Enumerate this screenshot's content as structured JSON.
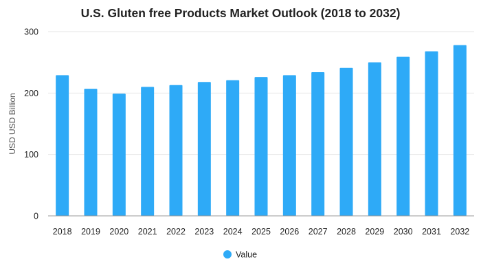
{
  "chart_data": {
    "type": "bar",
    "title": "U.S. Gluten free Products Market Outlook (2018 to 2032)",
    "xlabel": "",
    "ylabel": "USD USD Billion",
    "categories": [
      "2018",
      "2019",
      "2020",
      "2021",
      "2022",
      "2023",
      "2024",
      "2025",
      "2026",
      "2027",
      "2028",
      "2029",
      "2030",
      "2031",
      "2032"
    ],
    "series": [
      {
        "name": "Value",
        "values": [
          229,
          207,
          199,
          210,
          213,
          218,
          221,
          226,
          229,
          234,
          241,
          250,
          259,
          268,
          278
        ]
      }
    ],
    "ylim": [
      0,
      300
    ],
    "yticks": [
      "0",
      "100",
      "200",
      "300"
    ],
    "grid": true,
    "legend": "bottom-center",
    "colors": {
      "bar": "#2eaaf7"
    }
  }
}
